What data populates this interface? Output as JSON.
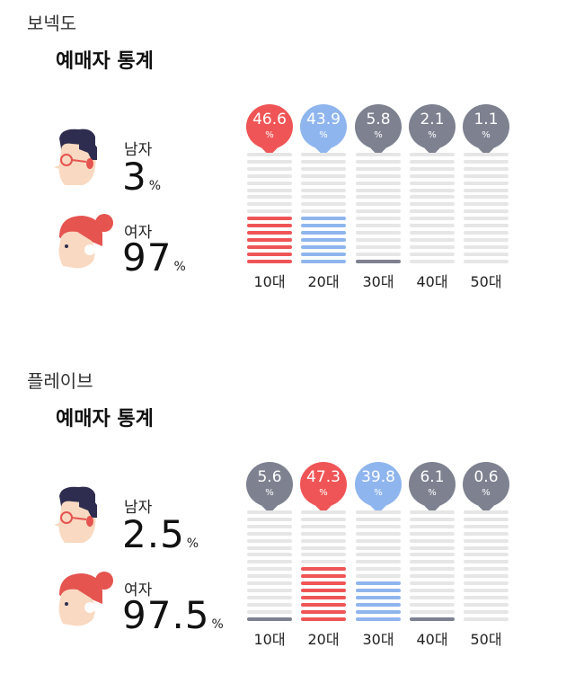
{
  "colors": {
    "red": "#ef5556",
    "blue": "#8fb5ee",
    "gray": "#7d8190",
    "stripe_empty": "#e6e6e6",
    "hair": "#2e2d4f",
    "skin": "#f9d9c1",
    "female_hair": "#e5544f"
  },
  "sections": [
    {
      "title": "보넥도",
      "stats_title": "예매자 통계",
      "male": {
        "label": "남자",
        "value": "3",
        "unit": "%"
      },
      "female": {
        "label": "여자",
        "value": "97",
        "unit": "%"
      },
      "ages": [
        {
          "label": "10대",
          "value": "46.6",
          "unit": "%",
          "fraction": 0.466,
          "color": "red"
        },
        {
          "label": "20대",
          "value": "43.9",
          "unit": "%",
          "fraction": 0.439,
          "color": "blue"
        },
        {
          "label": "30대",
          "value": "5.8",
          "unit": "%",
          "fraction": 0.058,
          "color": "gray"
        },
        {
          "label": "40대",
          "value": "2.1",
          "unit": "%",
          "fraction": 0.021,
          "color": "gray"
        },
        {
          "label": "50대",
          "value": "1.1",
          "unit": "%",
          "fraction": 0.011,
          "color": "gray"
        }
      ]
    },
    {
      "title": "플레이브",
      "stats_title": "예매자 통계",
      "male": {
        "label": "남자",
        "value": "2.5",
        "unit": "%"
      },
      "female": {
        "label": "여자",
        "value": "97.5",
        "unit": "%"
      },
      "ages": [
        {
          "label": "10대",
          "value": "5.6",
          "unit": "%",
          "fraction": 0.056,
          "color": "gray"
        },
        {
          "label": "20대",
          "value": "47.3",
          "unit": "%",
          "fraction": 0.473,
          "color": "red"
        },
        {
          "label": "30대",
          "value": "39.8",
          "unit": "%",
          "fraction": 0.398,
          "color": "blue"
        },
        {
          "label": "40대",
          "value": "6.1",
          "unit": "%",
          "fraction": 0.061,
          "color": "gray"
        },
        {
          "label": "50대",
          "value": "0.6",
          "unit": "%",
          "fraction": 0.006,
          "color": "gray"
        }
      ]
    }
  ]
}
